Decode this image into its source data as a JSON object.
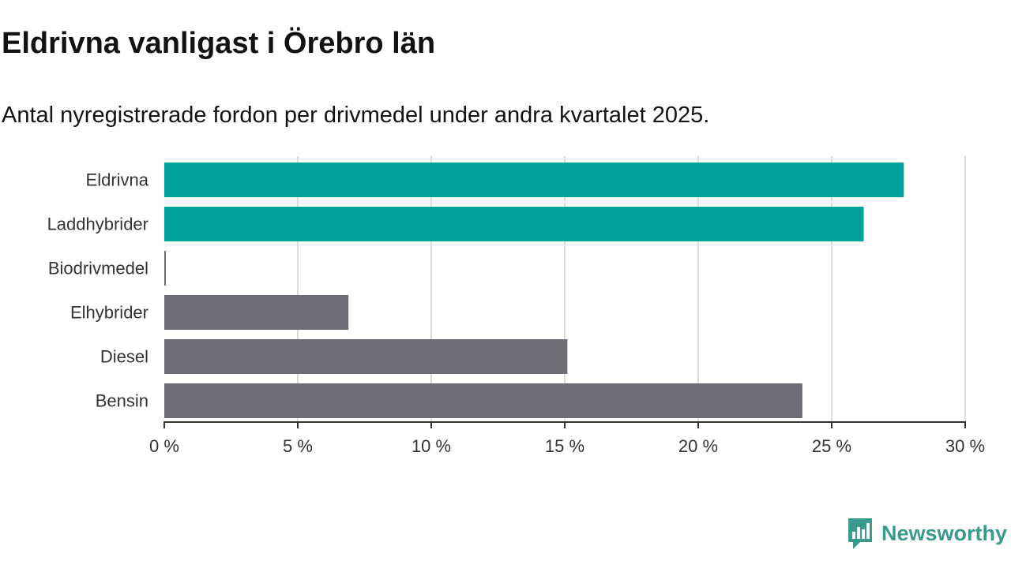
{
  "title": "Eldrivna vanligast i Örebro län",
  "subtitle": "Antal nyregistrerade fordon per drivmedel under andra kvartalet 2025.",
  "brand": {
    "name": "Newsworthy",
    "color": "#3a9a8f"
  },
  "chart_data": {
    "type": "bar",
    "orientation": "horizontal",
    "categories": [
      "Eldrivna",
      "Laddhybrider",
      "Biodrivmedel",
      "Elhybrider",
      "Diesel",
      "Bensin"
    ],
    "values": [
      27.7,
      26.2,
      0.05,
      6.9,
      15.1,
      23.9
    ],
    "colors": [
      "#00a39a",
      "#00a39a",
      "#6e6d75",
      "#6e6d75",
      "#6e6d75",
      "#6e6d75"
    ],
    "xlim": [
      0,
      30
    ],
    "xticks": [
      0,
      5,
      10,
      15,
      20,
      25,
      30
    ],
    "xtick_labels": [
      "0 %",
      "5 %",
      "10 %",
      "15 %",
      "20 %",
      "25 %",
      "30 %"
    ],
    "grid": true,
    "legend": "none"
  }
}
